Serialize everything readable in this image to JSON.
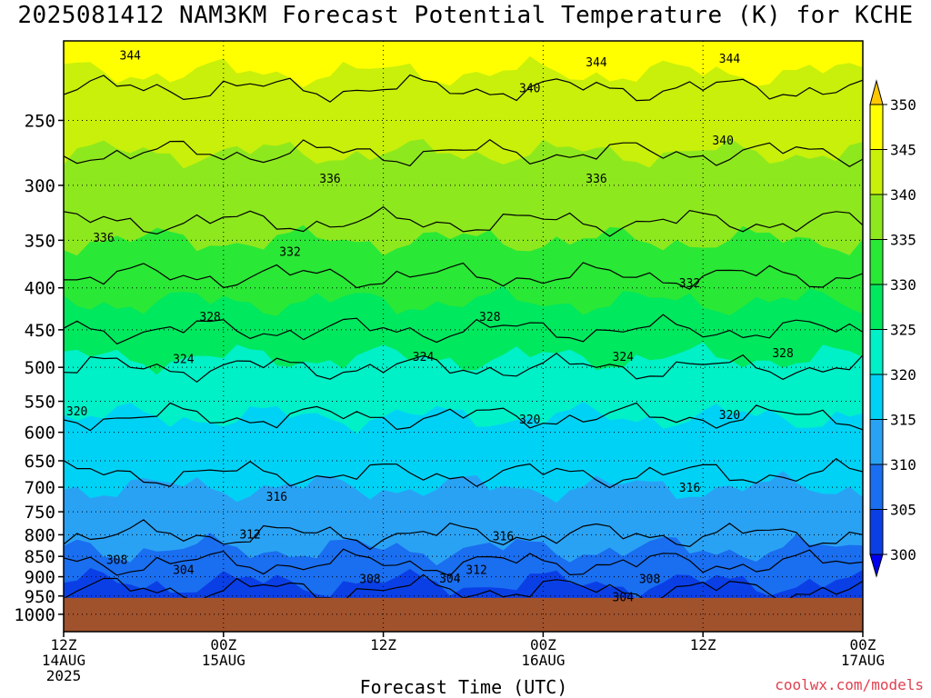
{
  "chart_data": {
    "type": "heatmap",
    "title": "2025081412 NAM3KM Forecast Potential Temperature (K) for KCHE",
    "xlabel": "Forecast Time (UTC)",
    "ylabel": "",
    "credit": "coolwx.com/models",
    "y_axis": {
      "scale": "log-pressure",
      "range": [
        200,
        1050
      ],
      "ticks": [
        250,
        300,
        350,
        400,
        450,
        500,
        550,
        600,
        650,
        700,
        750,
        800,
        850,
        900,
        950,
        1000
      ],
      "gridlines": "dotted"
    },
    "x_axis": {
      "range_hours": [
        0,
        60
      ],
      "ticks": [
        {
          "hour": 0,
          "label": "12Z",
          "sub": "14AUG",
          "sub2": "2025"
        },
        {
          "hour": 12,
          "label": "00Z",
          "sub": "15AUG",
          "sub2": ""
        },
        {
          "hour": 24,
          "label": "12Z",
          "sub": "",
          "sub2": ""
        },
        {
          "hour": 36,
          "label": "00Z",
          "sub": "16AUG",
          "sub2": ""
        },
        {
          "hour": 48,
          "label": "12Z",
          "sub": "",
          "sub2": ""
        },
        {
          "hour": 60,
          "label": "00Z",
          "sub": "17AUG",
          "sub2": ""
        }
      ]
    },
    "colorbar": {
      "levels": [
        300,
        305,
        310,
        315,
        320,
        325,
        330,
        335,
        340,
        345,
        350
      ],
      "colors": [
        "#0000ee",
        "#0a3fe6",
        "#1a6ef0",
        "#2aa2f4",
        "#00d2f6",
        "#00f0c8",
        "#00e85e",
        "#2ae836",
        "#8ee81e",
        "#c8f00a",
        "#ffff00",
        "#ffc800"
      ],
      "extend": "both"
    },
    "contour_interval": 4,
    "contour_profile": [
      {
        "pressure": 200,
        "theta": 347
      },
      {
        "pressure": 250,
        "theta": 342
      },
      {
        "pressure": 300,
        "theta": 338
      },
      {
        "pressure": 350,
        "theta": 335
      },
      {
        "pressure": 400,
        "theta": 331
      },
      {
        "pressure": 450,
        "theta": 328
      },
      {
        "pressure": 500,
        "theta": 324
      },
      {
        "pressure": 550,
        "theta": 321
      },
      {
        "pressure": 600,
        "theta": 319
      },
      {
        "pressure": 650,
        "theta": 317
      },
      {
        "pressure": 700,
        "theta": 315
      },
      {
        "pressure": 750,
        "theta": 314
      },
      {
        "pressure": 800,
        "theta": 312
      },
      {
        "pressure": 850,
        "theta": 309
      },
      {
        "pressure": 900,
        "theta": 306
      },
      {
        "pressure": 950,
        "theta": 303
      }
    ],
    "contour_labels": [
      {
        "value": "344",
        "hour": 5,
        "pressure": 208
      },
      {
        "value": "344",
        "hour": 40,
        "pressure": 212
      },
      {
        "value": "344",
        "hour": 50,
        "pressure": 210
      },
      {
        "value": "340",
        "hour": 35,
        "pressure": 228
      },
      {
        "value": "340",
        "hour": 49.5,
        "pressure": 264
      },
      {
        "value": "336",
        "hour": 20,
        "pressure": 294
      },
      {
        "value": "336",
        "hour": 40,
        "pressure": 294
      },
      {
        "value": "336",
        "hour": 3,
        "pressure": 347
      },
      {
        "value": "332",
        "hour": 17,
        "pressure": 361
      },
      {
        "value": "332",
        "hour": 47,
        "pressure": 394
      },
      {
        "value": "328",
        "hour": 11,
        "pressure": 433
      },
      {
        "value": "328",
        "hour": 32,
        "pressure": 433
      },
      {
        "value": "328",
        "hour": 54,
        "pressure": 480
      },
      {
        "value": "324",
        "hour": 9,
        "pressure": 488
      },
      {
        "value": "324",
        "hour": 27,
        "pressure": 485
      },
      {
        "value": "324",
        "hour": 42,
        "pressure": 485
      },
      {
        "value": "320",
        "hour": 1,
        "pressure": 565
      },
      {
        "value": "320",
        "hour": 35,
        "pressure": 578
      },
      {
        "value": "320",
        "hour": 50,
        "pressure": 571
      },
      {
        "value": "316",
        "hour": 16,
        "pressure": 718
      },
      {
        "value": "316",
        "hour": 33,
        "pressure": 802
      },
      {
        "value": "316",
        "hour": 47,
        "pressure": 700
      },
      {
        "value": "312",
        "hour": 14,
        "pressure": 798
      },
      {
        "value": "312",
        "hour": 31,
        "pressure": 882
      },
      {
        "value": "308",
        "hour": 4,
        "pressure": 857
      },
      {
        "value": "308",
        "hour": 23,
        "pressure": 905
      },
      {
        "value": "308",
        "hour": 44,
        "pressure": 905
      },
      {
        "value": "304",
        "hour": 9,
        "pressure": 882
      },
      {
        "value": "304",
        "hour": 29,
        "pressure": 903
      },
      {
        "value": "304",
        "hour": 42,
        "pressure": 952
      }
    ],
    "terrain_top_pressure": 955
  }
}
